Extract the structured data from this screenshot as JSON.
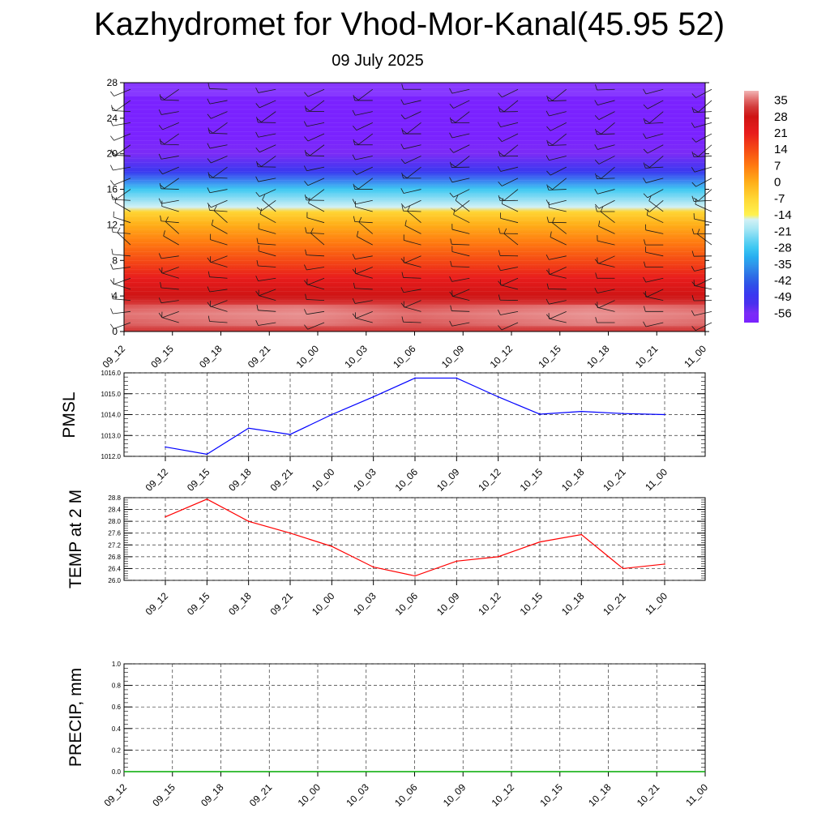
{
  "title": "Kazhydromet for Vhod-Mor-Kanal(45.95 52)",
  "subtitle": "09 July 2025",
  "chart_data": [
    {
      "type": "heatmap",
      "name": "vertical cross-section",
      "x_tick_labels": [
        "09_12",
        "09_15",
        "09_18",
        "09_21",
        "10_00",
        "10_03",
        "10_06",
        "10_09",
        "10_12",
        "10_15",
        "10_18",
        "10_21",
        "11_00"
      ],
      "y_tick_labels": [
        "0",
        "4",
        "8",
        "12",
        "16",
        "20",
        "24",
        "28"
      ],
      "ylim": [
        0,
        28
      ],
      "colorbar_labels": [
        "35",
        "28",
        "21",
        "14",
        "7",
        "0",
        "-7",
        "-14",
        "-21",
        "-28",
        "-35",
        "-42",
        "-49",
        "-56"
      ],
      "colorbar_range": [
        -60,
        39
      ],
      "temperature_profile": [
        {
          "level": 0,
          "value": 34
        },
        {
          "level": 2,
          "value": 36
        },
        {
          "level": 4,
          "value": 32
        },
        {
          "level": 6,
          "value": 27
        },
        {
          "level": 8,
          "value": 20
        },
        {
          "level": 10,
          "value": 10
        },
        {
          "level": 12,
          "value": 2
        },
        {
          "level": 13.5,
          "value": -5
        },
        {
          "level": 14,
          "value": -14
        },
        {
          "level": 16,
          "value": -26
        },
        {
          "level": 18,
          "value": -44
        },
        {
          "level": 20,
          "value": -54
        },
        {
          "level": 22,
          "value": -58
        },
        {
          "level": 24,
          "value": -56
        },
        {
          "level": 26,
          "value": -58
        },
        {
          "level": 28,
          "value": -58
        }
      ],
      "wind_barbs": true
    },
    {
      "type": "line",
      "name": "pmsl",
      "ylabel": "PMSL",
      "x_tick_labels": [
        "09_12",
        "09_15",
        "09_18",
        "09_21",
        "10_00",
        "10_03",
        "10_06",
        "10_09",
        "10_12",
        "10_15",
        "10_18",
        "10_21",
        "11_00"
      ],
      "y_tick_labels": [
        "1012.0",
        "1013.0",
        "1014.0",
        "1015.0",
        "1016.0"
      ],
      "ylim": [
        1012,
        1016
      ],
      "values": [
        1012.45,
        1012.1,
        1013.35,
        1013.05,
        1014.0,
        1014.85,
        1015.75,
        1015.75,
        1014.85,
        1014.02,
        1014.15,
        1014.05,
        1014.0
      ],
      "color": "#0000ff"
    },
    {
      "type": "line",
      "name": "temp2m",
      "ylabel": "TEMP at 2 M",
      "x_tick_labels": [
        "09_12",
        "09_15",
        "09_18",
        "09_21",
        "10_00",
        "10_03",
        "10_06",
        "10_09",
        "10_12",
        "10_15",
        "10_18",
        "10_21",
        "11_00"
      ],
      "y_tick_labels": [
        "26.0",
        "26.4",
        "26.8",
        "27.2",
        "27.6",
        "28.0",
        "28.4",
        "28.8"
      ],
      "ylim": [
        26.0,
        28.8
      ],
      "values": [
        28.15,
        28.75,
        28.0,
        27.6,
        27.15,
        26.45,
        26.15,
        26.65,
        26.8,
        27.3,
        27.55,
        26.4,
        26.55
      ],
      "color": "#ff0000"
    },
    {
      "type": "line",
      "name": "precip",
      "ylabel": "PRECIP, mm",
      "x_tick_labels": [
        "09_12",
        "09_15",
        "09_18",
        "09_21",
        "10_00",
        "10_03",
        "10_06",
        "10_09",
        "10_12",
        "10_15",
        "10_18",
        "10_21",
        "11_00"
      ],
      "y_tick_labels": [
        "0.0",
        "0.2",
        "0.4",
        "0.6",
        "0.8",
        "1.0"
      ],
      "ylim": [
        0,
        1
      ],
      "values": [
        0,
        0,
        0,
        0,
        0,
        0,
        0,
        0,
        0,
        0,
        0,
        0,
        0
      ],
      "color": "#00aa00"
    }
  ]
}
